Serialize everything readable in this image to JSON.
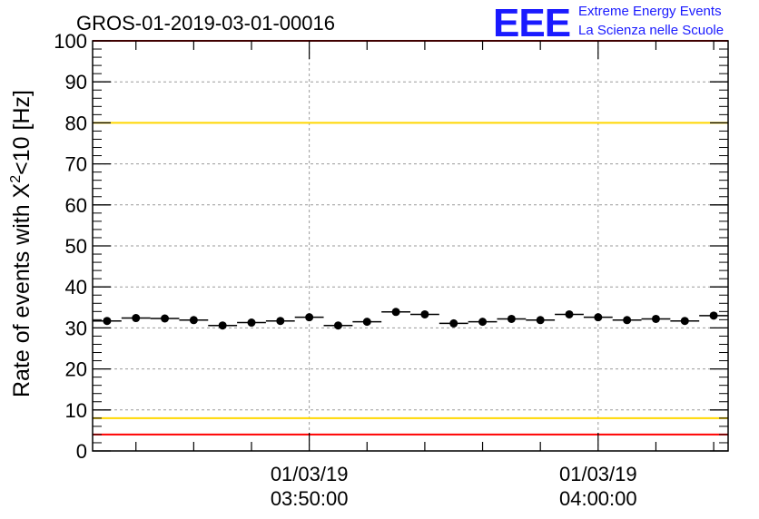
{
  "chart_data": {
    "type": "scatter",
    "title": "GROS-01-2019-03-01-00016",
    "ylabel_main": "Rate of events with X",
    "ylabel_sup": "2",
    "ylabel_tail": "<10 [Hz]",
    "ylim": [
      0,
      100
    ],
    "yticks": [
      "0",
      "10",
      "20",
      "30",
      "40",
      "50",
      "60",
      "70",
      "80",
      "90",
      "100"
    ],
    "x_time_range": [
      "03:42:30",
      "04:04:30"
    ],
    "xticks": [
      {
        "date": "01/03/19",
        "time": "03:50:00"
      },
      {
        "date": "01/03/19",
        "time": "04:00:00"
      }
    ],
    "grid": true,
    "reference_lines": [
      {
        "y": 100,
        "color": "#ff0000"
      },
      {
        "y": 80,
        "color": "#ffd700"
      },
      {
        "y": 8,
        "color": "#ffd700"
      },
      {
        "y": 4,
        "color": "#ff0000"
      }
    ],
    "values": [
      31.7,
      32.4,
      32.3,
      31.9,
      30.6,
      31.3,
      31.7,
      32.6,
      30.6,
      31.5,
      33.9,
      33.3,
      31.1,
      31.5,
      32.2,
      31.9,
      33.3,
      32.6,
      31.9,
      32.2,
      31.7,
      33.0
    ],
    "marker_color": "#000000"
  },
  "logo": {
    "mark": "EEE",
    "line1": "Extreme Energy Events",
    "line2": "La Scienza nelle Scuole",
    "color": "#1a1aff"
  }
}
